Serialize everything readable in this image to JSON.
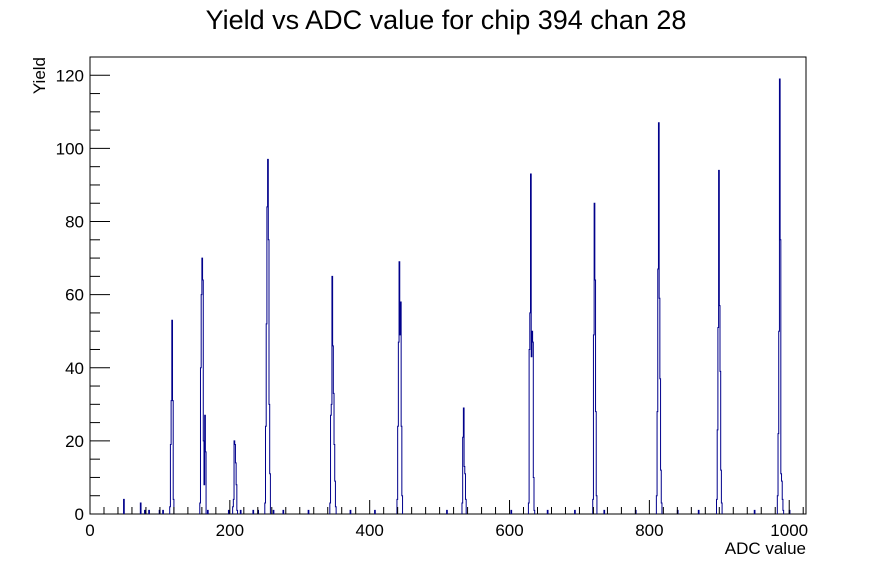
{
  "chart_data": {
    "type": "histogram",
    "title": "Yield vs ADC value for chip 394 chan 28",
    "xlabel": "ADC value",
    "ylabel": "Yield",
    "xlim": [
      0,
      1024
    ],
    "ylim": [
      0,
      125
    ],
    "x_ticks": [
      0,
      200,
      400,
      600,
      800,
      1000
    ],
    "y_ticks": [
      0,
      20,
      40,
      60,
      80,
      100,
      120
    ],
    "bin_width": 1,
    "grid": false,
    "legend": "none",
    "line_color": "#00008b",
    "series": [
      {
        "peaks": [
          {
            "bins": [
              [
                114,
                2
              ],
              [
                115,
                19
              ],
              [
                116,
                31
              ],
              [
                117,
                53
              ],
              [
                118,
                31
              ],
              [
                119,
                4
              ]
            ]
          },
          {
            "bins": [
              [
                157,
                3
              ],
              [
                158,
                40
              ],
              [
                159,
                60
              ],
              [
                160,
                70
              ],
              [
                161,
                64
              ],
              [
                162,
                20
              ],
              [
                163,
                8
              ],
              [
                164,
                27
              ],
              [
                165,
                17
              ]
            ]
          },
          {
            "bins": [
              [
                204,
                2
              ],
              [
                205,
                4
              ],
              [
                206,
                20
              ],
              [
                207,
                19
              ],
              [
                208,
                14
              ],
              [
                209,
                8
              ],
              [
                210,
                1
              ]
            ]
          },
          {
            "bins": [
              [
                250,
                3
              ],
              [
                251,
                24
              ],
              [
                252,
                52
              ],
              [
                253,
                84
              ],
              [
                254,
                97
              ],
              [
                255,
                75
              ],
              [
                256,
                30
              ],
              [
                257,
                11
              ]
            ]
          },
          {
            "bins": [
              [
                343,
                3
              ],
              [
                344,
                27
              ],
              [
                345,
                30
              ],
              [
                346,
                65
              ],
              [
                347,
                46
              ],
              [
                348,
                33
              ],
              [
                349,
                19
              ],
              [
                350,
                9
              ],
              [
                351,
                2
              ]
            ]
          },
          {
            "bins": [
              [
                439,
                4
              ],
              [
                440,
                24
              ],
              [
                441,
                47
              ],
              [
                442,
                69
              ],
              [
                443,
                49
              ],
              [
                444,
                58
              ],
              [
                445,
                24
              ],
              [
                446,
                5
              ]
            ]
          },
          {
            "bins": [
              [
                532,
                3
              ],
              [
                533,
                21
              ],
              [
                534,
                29
              ],
              [
                535,
                13
              ],
              [
                536,
                11
              ],
              [
                537,
                4
              ]
            ]
          },
          {
            "bins": [
              [
                627,
                3
              ],
              [
                628,
                45
              ],
              [
                629,
                55
              ],
              [
                630,
                93
              ],
              [
                631,
                43
              ],
              [
                632,
                50
              ],
              [
                633,
                47
              ],
              [
                634,
                10
              ],
              [
                635,
                1
              ]
            ]
          },
          {
            "bins": [
              [
                719,
                4
              ],
              [
                720,
                49
              ],
              [
                721,
                85
              ],
              [
                722,
                64
              ],
              [
                723,
                28
              ],
              [
                724,
                5
              ]
            ]
          },
          {
            "bins": [
              [
                810,
                5
              ],
              [
                811,
                28
              ],
              [
                812,
                67
              ],
              [
                813,
                107
              ],
              [
                814,
                59
              ],
              [
                815,
                37
              ],
              [
                816,
                12
              ],
              [
                817,
                3
              ]
            ]
          },
          {
            "bins": [
              [
                896,
                4
              ],
              [
                897,
                23
              ],
              [
                898,
                51
              ],
              [
                899,
                94
              ],
              [
                900,
                57
              ],
              [
                901,
                39
              ],
              [
                902,
                12
              ],
              [
                903,
                3
              ]
            ]
          },
          {
            "bins": [
              [
                983,
                5
              ],
              [
                984,
                22
              ],
              [
                985,
                50
              ],
              [
                986,
                119
              ],
              [
                987,
                75
              ],
              [
                988,
                11
              ],
              [
                989,
                9
              ],
              [
                990,
                4
              ],
              [
                991,
                1
              ]
            ]
          }
        ],
        "isolated_bins": [
          [
            48,
            4
          ],
          [
            72,
            3
          ],
          [
            78,
            1
          ],
          [
            84,
            1
          ],
          [
            99,
            1
          ],
          [
            104,
            1
          ],
          [
            168,
            1
          ],
          [
            198,
            1
          ],
          [
            215,
            1
          ],
          [
            233,
            1
          ],
          [
            240,
            1
          ],
          [
            262,
            1
          ],
          [
            276,
            1
          ],
          [
            312,
            1
          ],
          [
            372,
            1
          ],
          [
            407,
            1
          ],
          [
            510,
            1
          ],
          [
            602,
            1
          ],
          [
            654,
            1
          ],
          [
            693,
            1
          ],
          [
            735,
            1
          ],
          [
            780,
            1
          ],
          [
            840,
            1
          ],
          [
            870,
            1
          ],
          [
            950,
            1
          ],
          [
            1000,
            1
          ]
        ]
      }
    ]
  }
}
